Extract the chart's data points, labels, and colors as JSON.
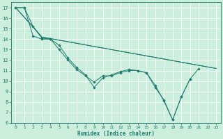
{
  "xlabel": "Humidex (Indice chaleur)",
  "bg_color": "#cceedd",
  "grid_color": "#ffffff",
  "line_color": "#1e7a6e",
  "xlim": [
    -0.5,
    23.5
  ],
  "ylim": [
    6,
    17.5
  ],
  "yticks": [
    6,
    7,
    8,
    9,
    10,
    11,
    12,
    13,
    14,
    15,
    16,
    17
  ],
  "xticks": [
    0,
    1,
    2,
    3,
    4,
    5,
    6,
    7,
    8,
    9,
    10,
    11,
    12,
    13,
    14,
    15,
    16,
    17,
    18,
    19,
    20,
    21,
    22,
    23
  ],
  "line1_x": [
    0,
    1,
    2,
    3,
    4,
    5,
    6,
    7,
    8,
    9,
    10,
    11,
    12,
    13,
    14,
    15,
    16,
    17,
    18,
    19,
    20,
    21
  ],
  "line1_y": [
    17.0,
    17.0,
    15.2,
    14.1,
    14.0,
    13.0,
    12.0,
    11.1,
    10.5,
    9.9,
    10.5,
    10.5,
    10.8,
    11.0,
    11.0,
    10.8,
    9.6,
    8.1,
    6.3,
    8.5,
    10.2,
    11.2
  ],
  "line2_x": [
    0,
    1,
    2,
    3,
    4,
    5,
    6,
    7,
    8,
    9,
    10,
    11,
    12,
    13,
    14,
    15,
    16,
    17,
    18,
    19,
    20
  ],
  "line2_y": [
    17.0,
    17.0,
    14.3,
    14.0,
    14.0,
    13.4,
    12.2,
    11.3,
    10.6,
    9.4,
    10.3,
    10.6,
    10.9,
    11.1,
    11.0,
    10.8,
    9.4,
    8.2,
    6.3,
    8.5,
    10.2
  ],
  "line3_x": [
    0,
    3,
    23
  ],
  "line3_y": [
    17.0,
    14.2,
    11.2
  ],
  "line4_x": [
    0,
    2,
    3,
    23
  ],
  "line4_y": [
    17.0,
    15.2,
    14.2,
    11.2
  ]
}
